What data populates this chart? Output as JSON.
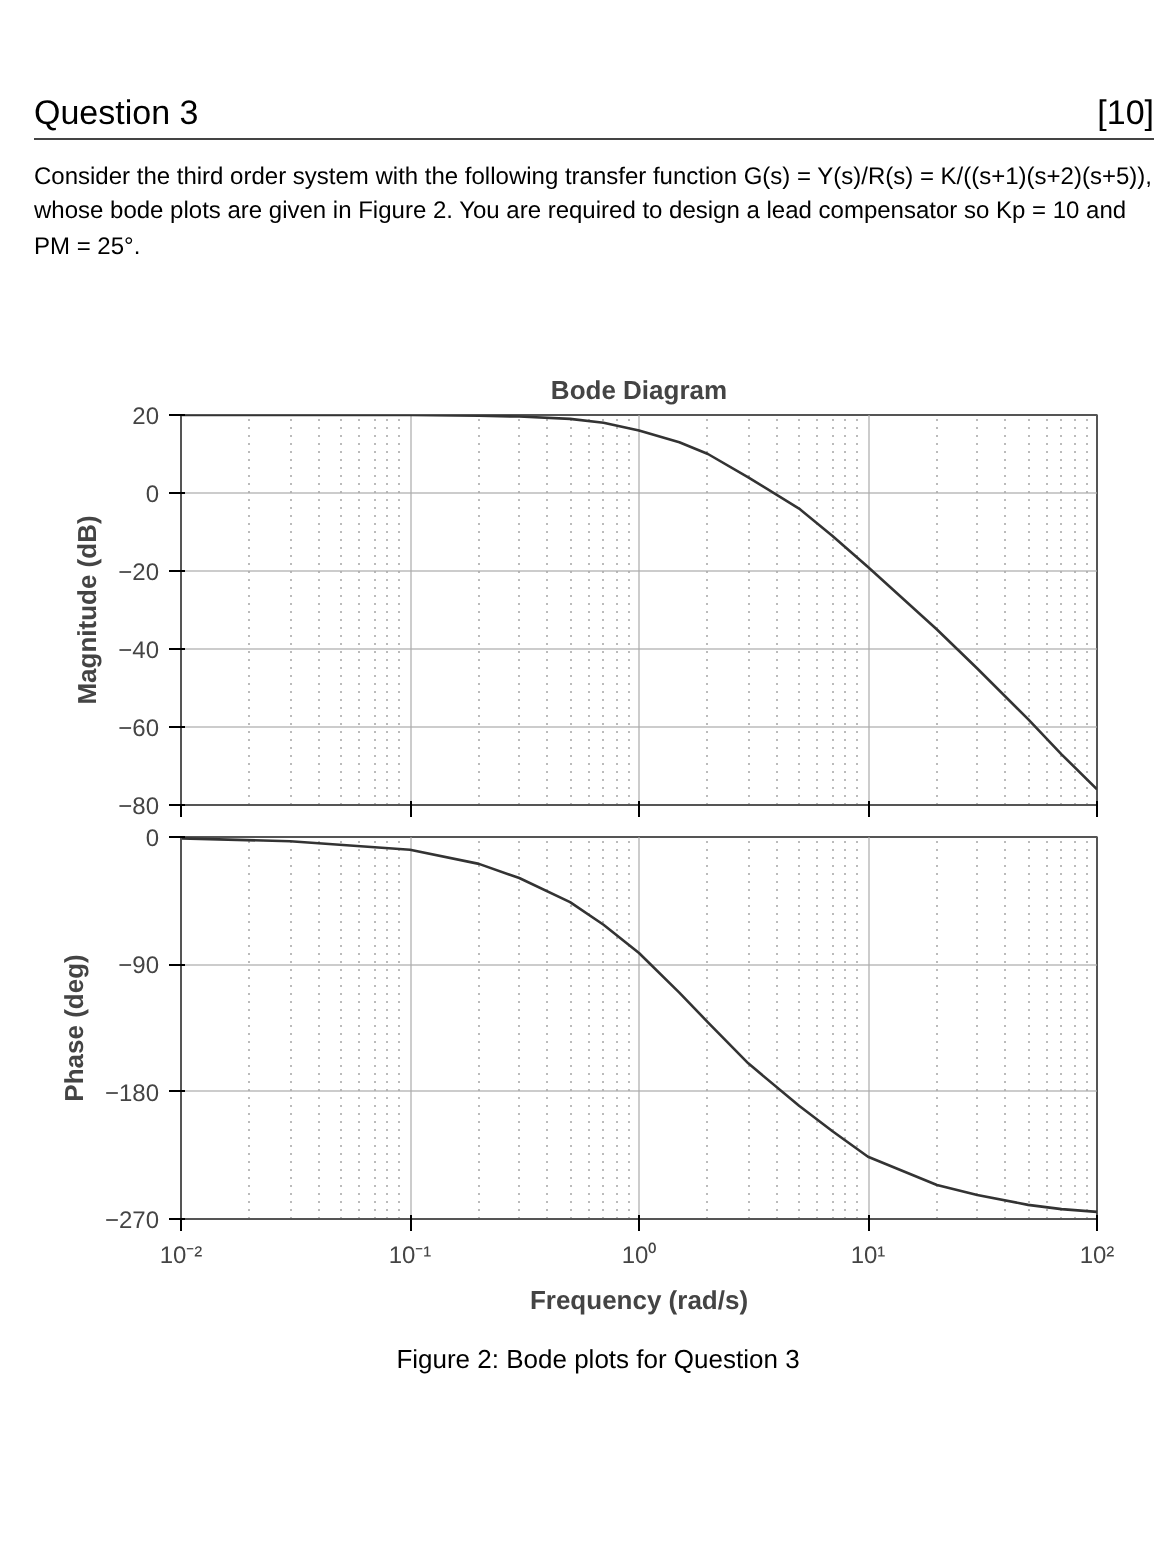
{
  "chart_data": [
    {
      "type": "line",
      "title": "Bode Diagram",
      "ylabel": "Magnitude (dB)",
      "annotations": [
        "Question 3",
        "[10]",
        "Consider the third order system with the following transfer function G(s) = Y(s)/R(s) = K/((s+1)(s+2)(s+5)), whose bode plots are given in Figure 2. You are required to design a lead compensator so Kp = 10 and PM = 25°."
      ],
      "x": [
        0.01,
        0.03,
        0.1,
        0.2,
        0.3,
        0.5,
        0.7,
        1,
        1.5,
        2,
        3,
        5,
        7,
        10,
        20,
        30,
        50,
        70,
        100
      ],
      "series": [
        {
          "color": "#333333",
          "values": [
            20,
            20,
            20,
            19.8,
            19.6,
            19,
            18,
            16,
            13,
            10,
            4,
            -4,
            -11,
            -19,
            -35,
            -45,
            -58,
            -67,
            -76
          ]
        }
      ],
      "xlim": [
        0.01,
        100
      ],
      "ylim": [
        -80,
        20
      ],
      "xticks": [
        0.01,
        0.1,
        1,
        10,
        100
      ],
      "yticks": [
        -80,
        -60,
        -40,
        -20,
        0,
        20
      ],
      "log": "x",
      "grid": true,
      "tick_labels": "y",
      "line_style": "solid"
    },
    {
      "type": "line",
      "xlabel": "Frequency (rad/s)",
      "ylabel": "Phase (deg)",
      "annotations": [
        "Figure 2: Bode plots for Question 3"
      ],
      "x": [
        0.01,
        0.03,
        0.1,
        0.2,
        0.3,
        0.5,
        0.7,
        1,
        1.5,
        2,
        3,
        5,
        7,
        10,
        20,
        30,
        50,
        70,
        100
      ],
      "series": [
        {
          "color": "#333333",
          "values": [
            -1,
            -3,
            -9,
            -19,
            -29,
            -46,
            -62,
            -82,
            -110,
            -131,
            -160,
            -190,
            -208,
            -226,
            -246,
            -253,
            -260,
            -263,
            -265
          ]
        }
      ],
      "xlim": [
        0.01,
        100
      ],
      "ylim": [
        -270,
        0
      ],
      "xticks": [
        {
          "value": 0.01,
          "label": "10⁻²"
        },
        {
          "value": 0.1,
          "label": "10⁻¹"
        },
        {
          "value": 1,
          "label": "10⁰"
        },
        {
          "value": 10,
          "label": "10¹"
        },
        {
          "value": 100,
          "label": "10²"
        }
      ],
      "yticks": [
        -270,
        -180,
        -90,
        0
      ],
      "log": "x",
      "grid": true,
      "line_style": "solid"
    }
  ]
}
